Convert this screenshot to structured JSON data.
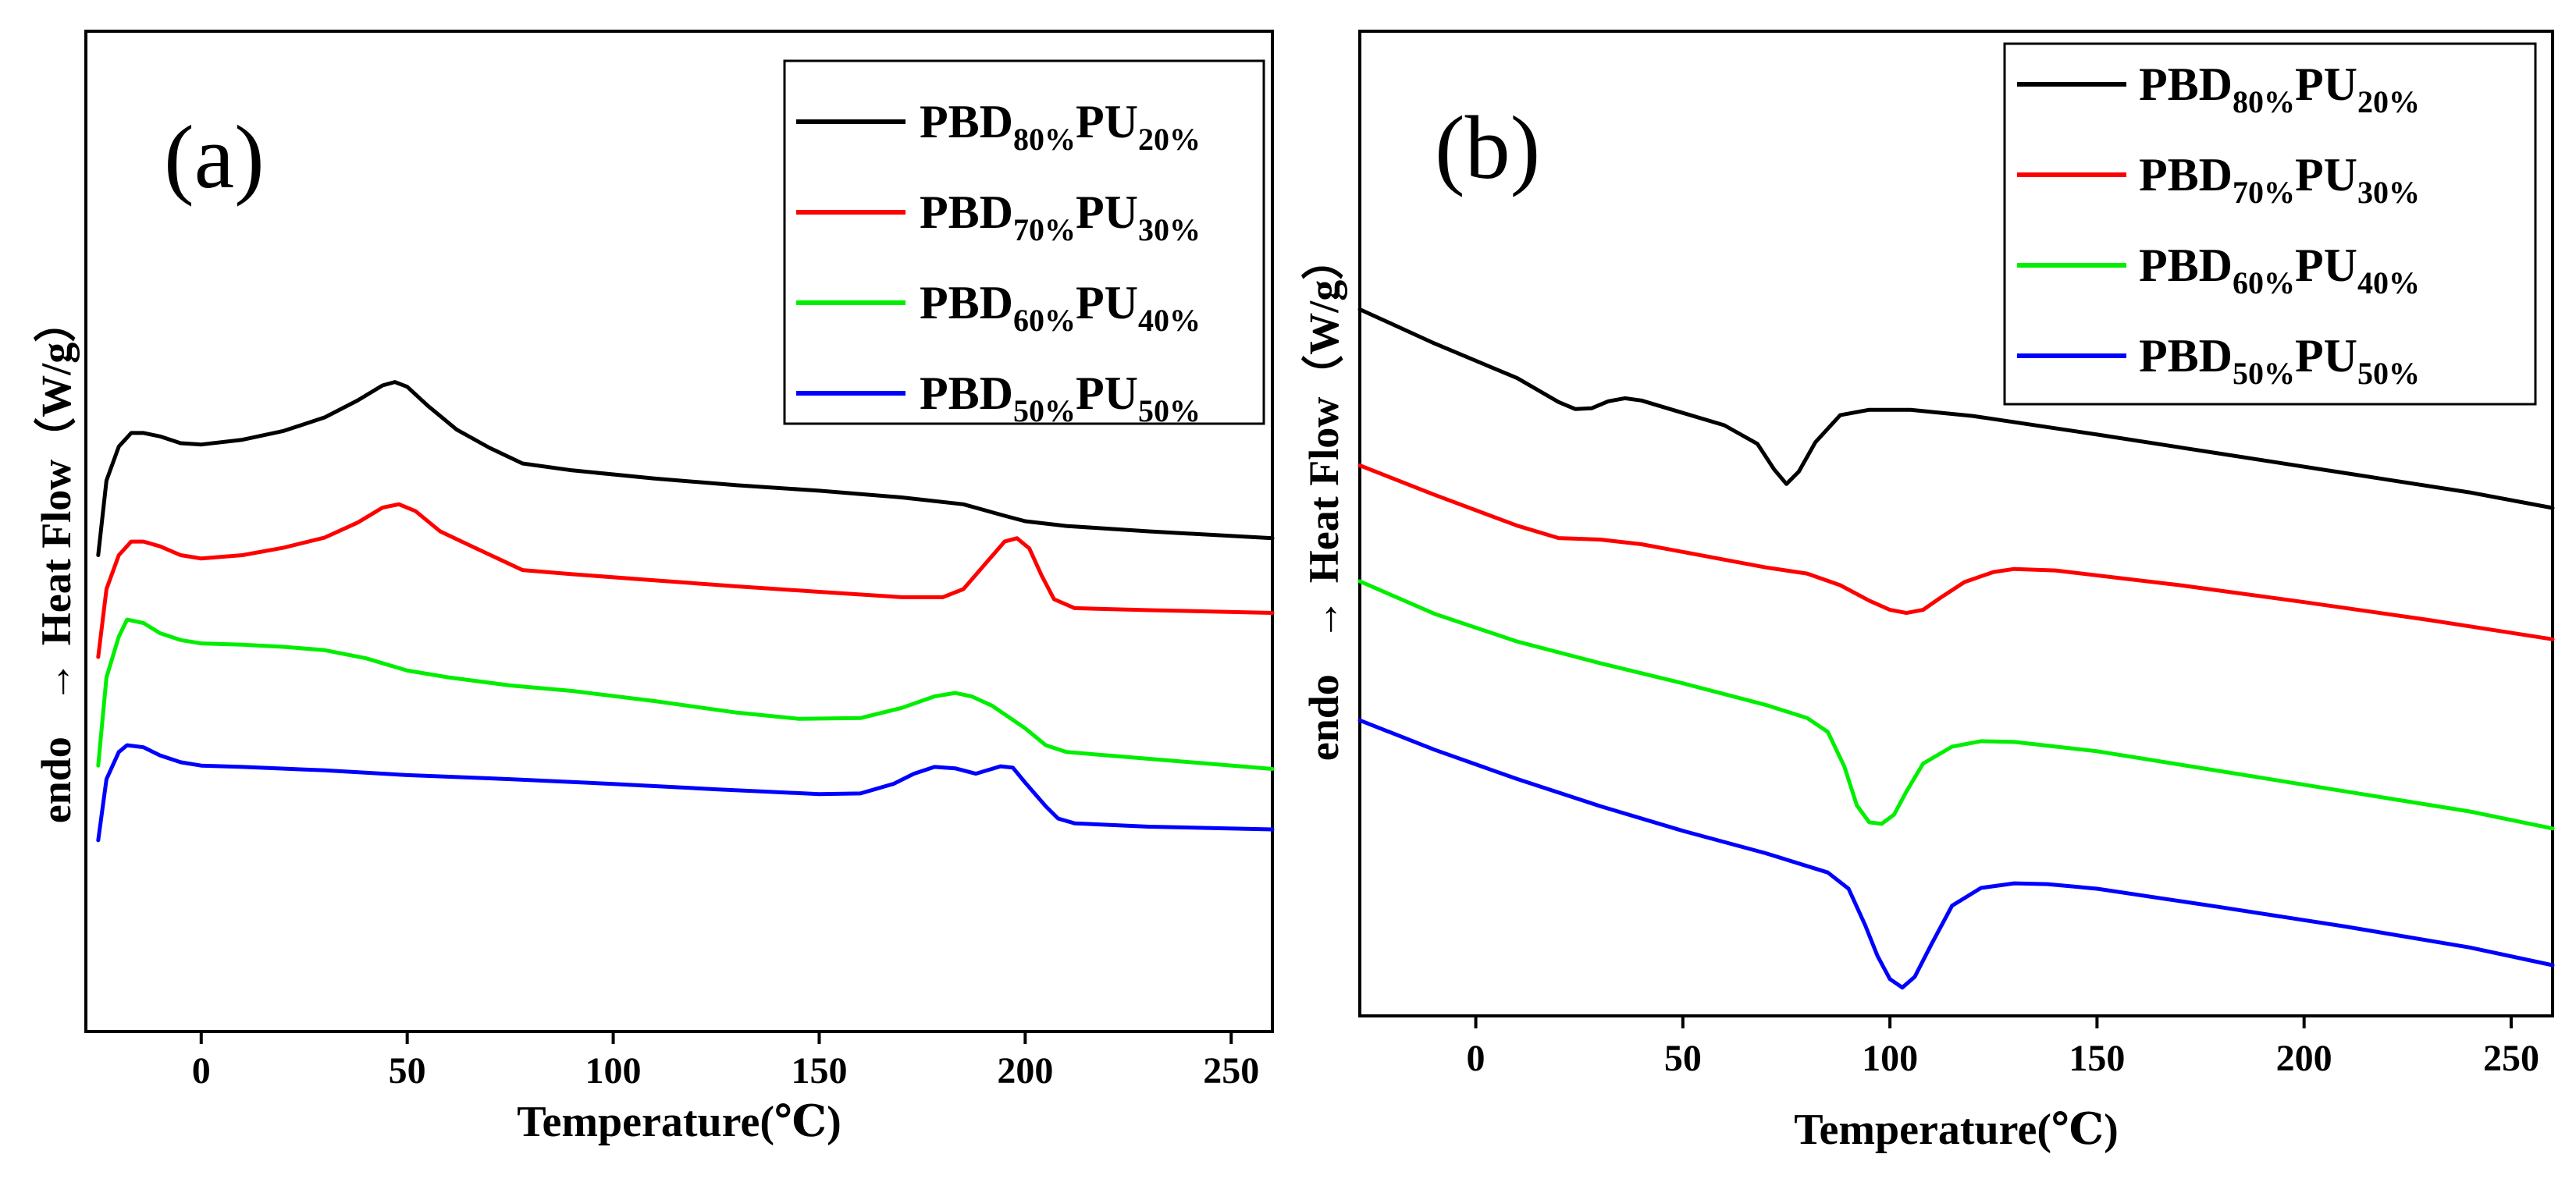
{
  "chart_data": [
    {
      "type": "line",
      "panel": "(a)",
      "xlabel": "Temperature(℃)",
      "ylabel_exo": "endo",
      "ylabel_arrow": "→",
      "ylabel_main": "Heat Flow（W/g）",
      "xlim": [
        -28,
        260
      ],
      "ylim": [
        0,
        100
      ],
      "xticks": [
        0,
        50,
        100,
        150,
        200,
        250
      ],
      "legend_position": "top-right",
      "series": [
        {
          "name_parts": [
            "PBD",
            "80%",
            "PU",
            "20%"
          ],
          "color": "#000000",
          "x": [
            -25,
            -23,
            -20,
            -17,
            -14,
            -10,
            -5,
            0,
            10,
            20,
            30,
            38,
            44,
            47,
            50,
            55,
            62,
            70,
            78,
            90,
            110,
            130,
            150,
            170,
            185,
            195,
            200,
            210,
            230,
            260
          ],
          "y": [
            55,
            66,
            71,
            73,
            73,
            72.5,
            71.5,
            71.3,
            72,
            73.3,
            75.3,
            77.8,
            80,
            80.5,
            79.8,
            77,
            73.5,
            70.8,
            68.5,
            67.5,
            66.3,
            65.3,
            64.5,
            63.5,
            62.5,
            60.8,
            60,
            59.3,
            58.5,
            57.5
          ]
        },
        {
          "name_parts": [
            "PBD",
            "70%",
            "PU",
            "30%"
          ],
          "color": "#ff0000",
          "x": [
            -25,
            -23,
            -20,
            -17,
            -14,
            -10,
            -5,
            0,
            10,
            20,
            30,
            38,
            44,
            48,
            52,
            58,
            65,
            72,
            78,
            90,
            110,
            130,
            150,
            170,
            180,
            185,
            190,
            195,
            198,
            201,
            204,
            207,
            212,
            230,
            260
          ],
          "y": [
            40,
            50,
            55,
            57,
            57,
            56.3,
            55,
            54.5,
            55,
            56.1,
            57.6,
            59.8,
            62,
            62.5,
            61.5,
            58.5,
            56.5,
            54.5,
            52.8,
            52.2,
            51.3,
            50.4,
            49.6,
            48.8,
            48.8,
            50,
            53.5,
            57,
            57.5,
            56,
            52,
            48.5,
            47.2,
            46.9,
            46.5
          ]
        },
        {
          "name_parts": [
            "PBD",
            "60%",
            "PU",
            "40%"
          ],
          "color": "#00ee00",
          "x": [
            -25,
            -23,
            -20,
            -18,
            -14,
            -10,
            -5,
            0,
            10,
            20,
            30,
            40,
            50,
            60,
            75,
            90,
            110,
            130,
            145,
            160,
            170,
            178,
            183,
            187,
            192,
            200,
            205,
            210,
            230,
            260
          ],
          "y": [
            24,
            37,
            43,
            45.5,
            45,
            43.5,
            42.5,
            42,
            41.8,
            41.5,
            41,
            39.8,
            38,
            37,
            35.8,
            35,
            33.5,
            31.8,
            30.9,
            31,
            32.5,
            34.2,
            34.7,
            34.2,
            32.8,
            29.5,
            27,
            26,
            25,
            23.5
          ]
        },
        {
          "name_parts": [
            "PBD",
            "50%",
            "PU",
            "50%"
          ],
          "color": "#0000ff",
          "x": [
            -25,
            -23,
            -20,
            -18,
            -14,
            -10,
            -5,
            0,
            10,
            30,
            50,
            75,
            100,
            125,
            150,
            160,
            168,
            173,
            178,
            183,
            188,
            194,
            197,
            200,
            205,
            208,
            212,
            230,
            260
          ],
          "y": [
            13,
            22,
            26,
            27,
            26.7,
            25.5,
            24.5,
            24,
            23.8,
            23.3,
            22.6,
            22,
            21.3,
            20.5,
            19.8,
            19.9,
            21.3,
            22.8,
            23.8,
            23.6,
            22.8,
            23.9,
            23.7,
            21.5,
            18,
            16.2,
            15.5,
            15,
            14.6
          ]
        }
      ]
    },
    {
      "type": "line",
      "panel": "(b)",
      "xlabel": "Temperature(℃)",
      "ylabel_exo": "endo",
      "ylabel_arrow": "→",
      "ylabel_main": "Heat Flow（W/g）",
      "xlim": [
        -28,
        260
      ],
      "ylim": [
        0,
        100
      ],
      "xticks": [
        0,
        50,
        100,
        150,
        200,
        250
      ],
      "legend_position": "top-right",
      "series": [
        {
          "name_parts": [
            "PBD",
            "80%",
            "PU",
            "20%"
          ],
          "color": "#000000",
          "x": [
            -28,
            -10,
            10,
            20,
            24,
            28,
            32,
            36,
            40,
            50,
            60,
            68,
            72,
            75,
            78,
            82,
            88,
            95,
            105,
            120,
            150,
            180,
            210,
            240,
            260
          ],
          "y": [
            85.2,
            80.8,
            76.3,
            73.2,
            72.3,
            72.4,
            73.3,
            73.7,
            73.4,
            71.8,
            70.2,
            67.8,
            64.5,
            62.6,
            64.2,
            68,
            71.5,
            72.2,
            72.2,
            71.4,
            69,
            66.5,
            64,
            61.5,
            59.5
          ]
        },
        {
          "name_parts": [
            "PBD",
            "70%",
            "PU",
            "30%"
          ],
          "color": "#ff0000",
          "x": [
            -28,
            -10,
            10,
            20,
            30,
            40,
            55,
            70,
            80,
            88,
            95,
            100,
            104,
            108,
            112,
            118,
            125,
            130,
            140,
            170,
            200,
            230,
            260
          ],
          "y": [
            65,
            61.2,
            57.2,
            55.6,
            55.4,
            54.8,
            53.3,
            51.8,
            51,
            49.5,
            47.5,
            46.3,
            45.9,
            46.3,
            47.8,
            49.9,
            51.2,
            51.6,
            51.4,
            49.5,
            47.3,
            45,
            42.5
          ]
        },
        {
          "name_parts": [
            "PBD",
            "60%",
            "PU",
            "40%"
          ],
          "color": "#00ee00",
          "x": [
            -28,
            -10,
            10,
            30,
            50,
            70,
            80,
            85,
            89,
            92,
            95,
            98,
            101,
            104,
            108,
            115,
            122,
            130,
            150,
            180,
            210,
            240,
            260
          ],
          "y": [
            50,
            45.8,
            42.2,
            39.4,
            36.8,
            34,
            32.3,
            30.5,
            26,
            21,
            18.8,
            18.6,
            19.8,
            22.8,
            26.4,
            28.6,
            29.3,
            29.2,
            28,
            25.4,
            22.8,
            20.2,
            18
          ]
        },
        {
          "name_parts": [
            "PBD",
            "50%",
            "PU",
            "50%"
          ],
          "color": "#0000ff",
          "x": [
            -28,
            -10,
            10,
            30,
            50,
            70,
            85,
            90,
            94,
            97,
            100,
            103,
            106,
            110,
            115,
            122,
            130,
            138,
            150,
            180,
            210,
            240,
            260
          ],
          "y": [
            32,
            28.2,
            24.4,
            20.9,
            17.7,
            14.8,
            12.3,
            10.2,
            5.5,
            1.5,
            -1.5,
            -2.6,
            -1.2,
            3,
            8,
            10.3,
            10.9,
            10.8,
            10.2,
            7.8,
            5.3,
            2.6,
            0.3
          ]
        }
      ]
    }
  ]
}
